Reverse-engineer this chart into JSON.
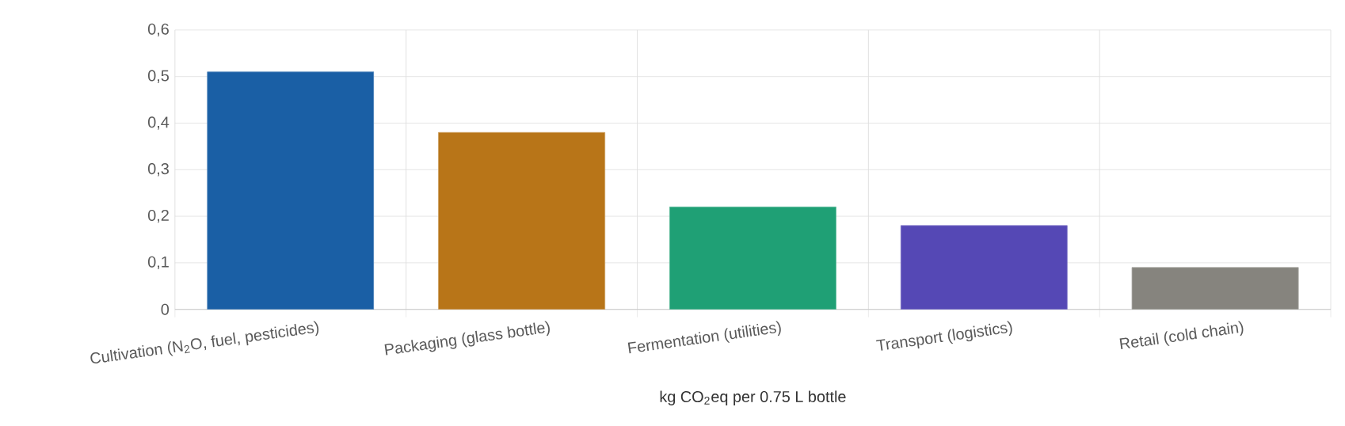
{
  "chart_data": {
    "type": "bar",
    "xlabel": "kg CO$_{2}$eq per 0.75 L bottle",
    "categories": [
      "Cultivation (N$_{2}$O, fuel, pesticides)",
      "Packaging (glass bottle)",
      "Fermentation (utilities)",
      "Transport (logistics)",
      "Retail (cold chain)"
    ],
    "values": [
      0.51,
      0.38,
      0.22,
      0.18,
      0.09
    ],
    "colors": [
      "#1a5fa5",
      "#b87518",
      "#1fa075",
      "#5548b5",
      "#86847e"
    ],
    "ylim": [
      0,
      0.6
    ],
    "yticks": [
      0,
      {
        "value": 0.1,
        "label": "0,1"
      },
      {
        "value": 0.2,
        "label": "0,2"
      },
      {
        "value": 0.3,
        "label": "0,3"
      },
      {
        "value": 0.4,
        "label": "0,4"
      },
      {
        "value": 0.5,
        "label": "0,5"
      },
      {
        "value": 0.6,
        "label": "0,6"
      }
    ],
    "grid": true
  }
}
